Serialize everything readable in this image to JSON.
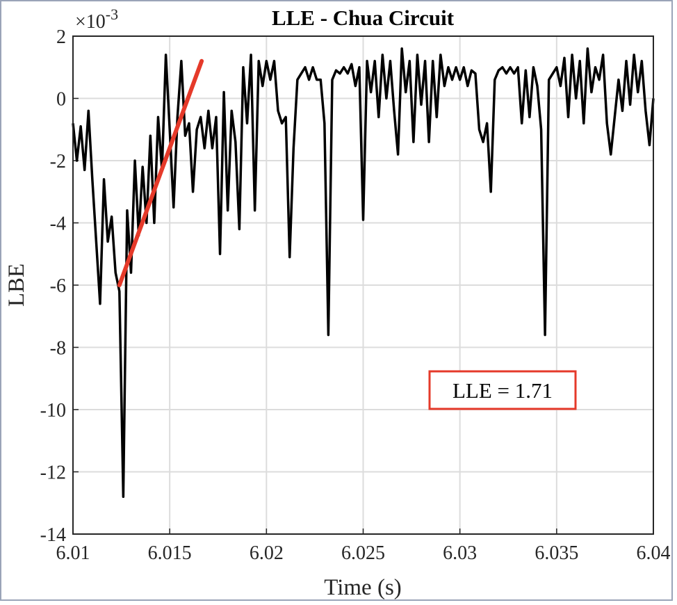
{
  "chart_data": {
    "type": "line",
    "title": "LLE - Chua Circuit",
    "xlabel": "Time (s)",
    "ylabel": "LBE",
    "y_multiplier": {
      "base": "×10",
      "exponent": "-3"
    },
    "annotation": "LLE = 1.71",
    "xlim": [
      6.01,
      6.04
    ],
    "xticks": [
      6.01,
      6.015,
      6.02,
      6.025,
      6.03,
      6.035,
      6.04
    ],
    "ylim": [
      -14,
      2
    ],
    "yticks": [
      -14,
      -12,
      -10,
      -8,
      -6,
      -4,
      -2,
      0,
      2
    ],
    "grid": true,
    "x": [
      6.01,
      6.0102,
      6.0104,
      6.0106,
      6.0108,
      6.011,
      6.0112,
      6.0114,
      6.0116,
      6.0118,
      6.012,
      6.0122,
      6.0124,
      6.0126,
      6.0128,
      6.013,
      6.0132,
      6.0134,
      6.0136,
      6.0138,
      6.014,
      6.0142,
      6.0144,
      6.0146,
      6.0148,
      6.015,
      6.0152,
      6.0154,
      6.0156,
      6.0158,
      6.016,
      6.0162,
      6.0164,
      6.0166,
      6.0168,
      6.017,
      6.0172,
      6.0174,
      6.0176,
      6.0178,
      6.018,
      6.0182,
      6.0184,
      6.0186,
      6.0188,
      6.019,
      6.0192,
      6.0194,
      6.0196,
      6.0198,
      6.02,
      6.0202,
      6.0204,
      6.0206,
      6.0208,
      6.021,
      6.0212,
      6.0214,
      6.0216,
      6.0218,
      6.022,
      6.0222,
      6.0224,
      6.0226,
      6.0228,
      6.023,
      6.0232,
      6.0234,
      6.0236,
      6.0238,
      6.024,
      6.0242,
      6.0244,
      6.0246,
      6.0248,
      6.025,
      6.0252,
      6.0254,
      6.0256,
      6.0258,
      6.026,
      6.0262,
      6.0264,
      6.0266,
      6.0268,
      6.027,
      6.0272,
      6.0274,
      6.0276,
      6.0278,
      6.028,
      6.0282,
      6.0284,
      6.0286,
      6.0288,
      6.029,
      6.0292,
      6.0294,
      6.0296,
      6.0298,
      6.03,
      6.0302,
      6.0304,
      6.0306,
      6.0308,
      6.031,
      6.0312,
      6.0314,
      6.0316,
      6.0318,
      6.032,
      6.0322,
      6.0324,
      6.0326,
      6.0328,
      6.033,
      6.0332,
      6.0334,
      6.0336,
      6.0338,
      6.034,
      6.0342,
      6.0344,
      6.0346,
      6.0348,
      6.035,
      6.0352,
      6.0354,
      6.0356,
      6.0358,
      6.036,
      6.0362,
      6.0364,
      6.0366,
      6.0368,
      6.037,
      6.0372,
      6.0374,
      6.0376,
      6.0378,
      6.038,
      6.0382,
      6.0384,
      6.0386,
      6.0388,
      6.039,
      6.0392,
      6.0394,
      6.0396,
      6.0398,
      6.04
    ],
    "series": [
      {
        "color": "#000000",
        "values": [
          -0.8,
          -2.0,
          -0.9,
          -2.3,
          -0.4,
          -2.6,
          -4.6,
          -6.6,
          -2.6,
          -4.6,
          -3.8,
          -5.6,
          -6.2,
          -12.8,
          -3.6,
          -5.6,
          -2.0,
          -4.4,
          -2.2,
          -4.0,
          -1.2,
          -4.0,
          -0.6,
          -2.3,
          1.4,
          -1.0,
          -3.5,
          -0.6,
          1.2,
          -1.2,
          -0.8,
          -3.0,
          -1.0,
          -0.6,
          -1.6,
          -0.4,
          -1.6,
          -0.6,
          -5.0,
          0.2,
          -3.6,
          -0.4,
          -1.4,
          -4.2,
          1.0,
          -0.8,
          1.4,
          -3.6,
          1.2,
          0.4,
          1.2,
          0.6,
          1.2,
          -0.4,
          -0.8,
          -0.6,
          -5.1,
          -1.6,
          0.6,
          0.8,
          1.0,
          0.6,
          1.0,
          0.6,
          0.6,
          -0.8,
          -7.6,
          0.6,
          0.9,
          0.8,
          1.0,
          0.8,
          1.1,
          0.4,
          1.0,
          -3.9,
          1.2,
          0.2,
          1.2,
          -0.6,
          1.4,
          0.0,
          1.2,
          -0.4,
          -1.8,
          1.6,
          0.2,
          1.2,
          -1.4,
          1.4,
          -0.2,
          1.2,
          -1.4,
          1.2,
          -0.6,
          1.4,
          0.4,
          1.0,
          0.6,
          1.0,
          0.6,
          1.0,
          0.4,
          0.9,
          0.8,
          -1.0,
          -1.4,
          -0.8,
          -3.0,
          0.6,
          0.9,
          1.0,
          0.8,
          1.0,
          0.8,
          1.0,
          -0.8,
          0.9,
          -0.6,
          1.0,
          0.4,
          -1.0,
          -7.6,
          0.6,
          0.8,
          1.0,
          0.4,
          1.3,
          -0.6,
          1.4,
          0.0,
          1.2,
          -0.8,
          1.6,
          0.2,
          1.0,
          0.6,
          1.4,
          -0.8,
          -1.8,
          -0.6,
          0.6,
          -0.4,
          1.2,
          -0.2,
          1.4,
          0.2,
          1.2,
          -0.4,
          -1.5,
          0.0
        ]
      }
    ],
    "trend_line": {
      "color": "#e53a2a",
      "x": [
        6.0124,
        6.01665
      ],
      "y": [
        -6.0,
        1.2
      ]
    }
  }
}
